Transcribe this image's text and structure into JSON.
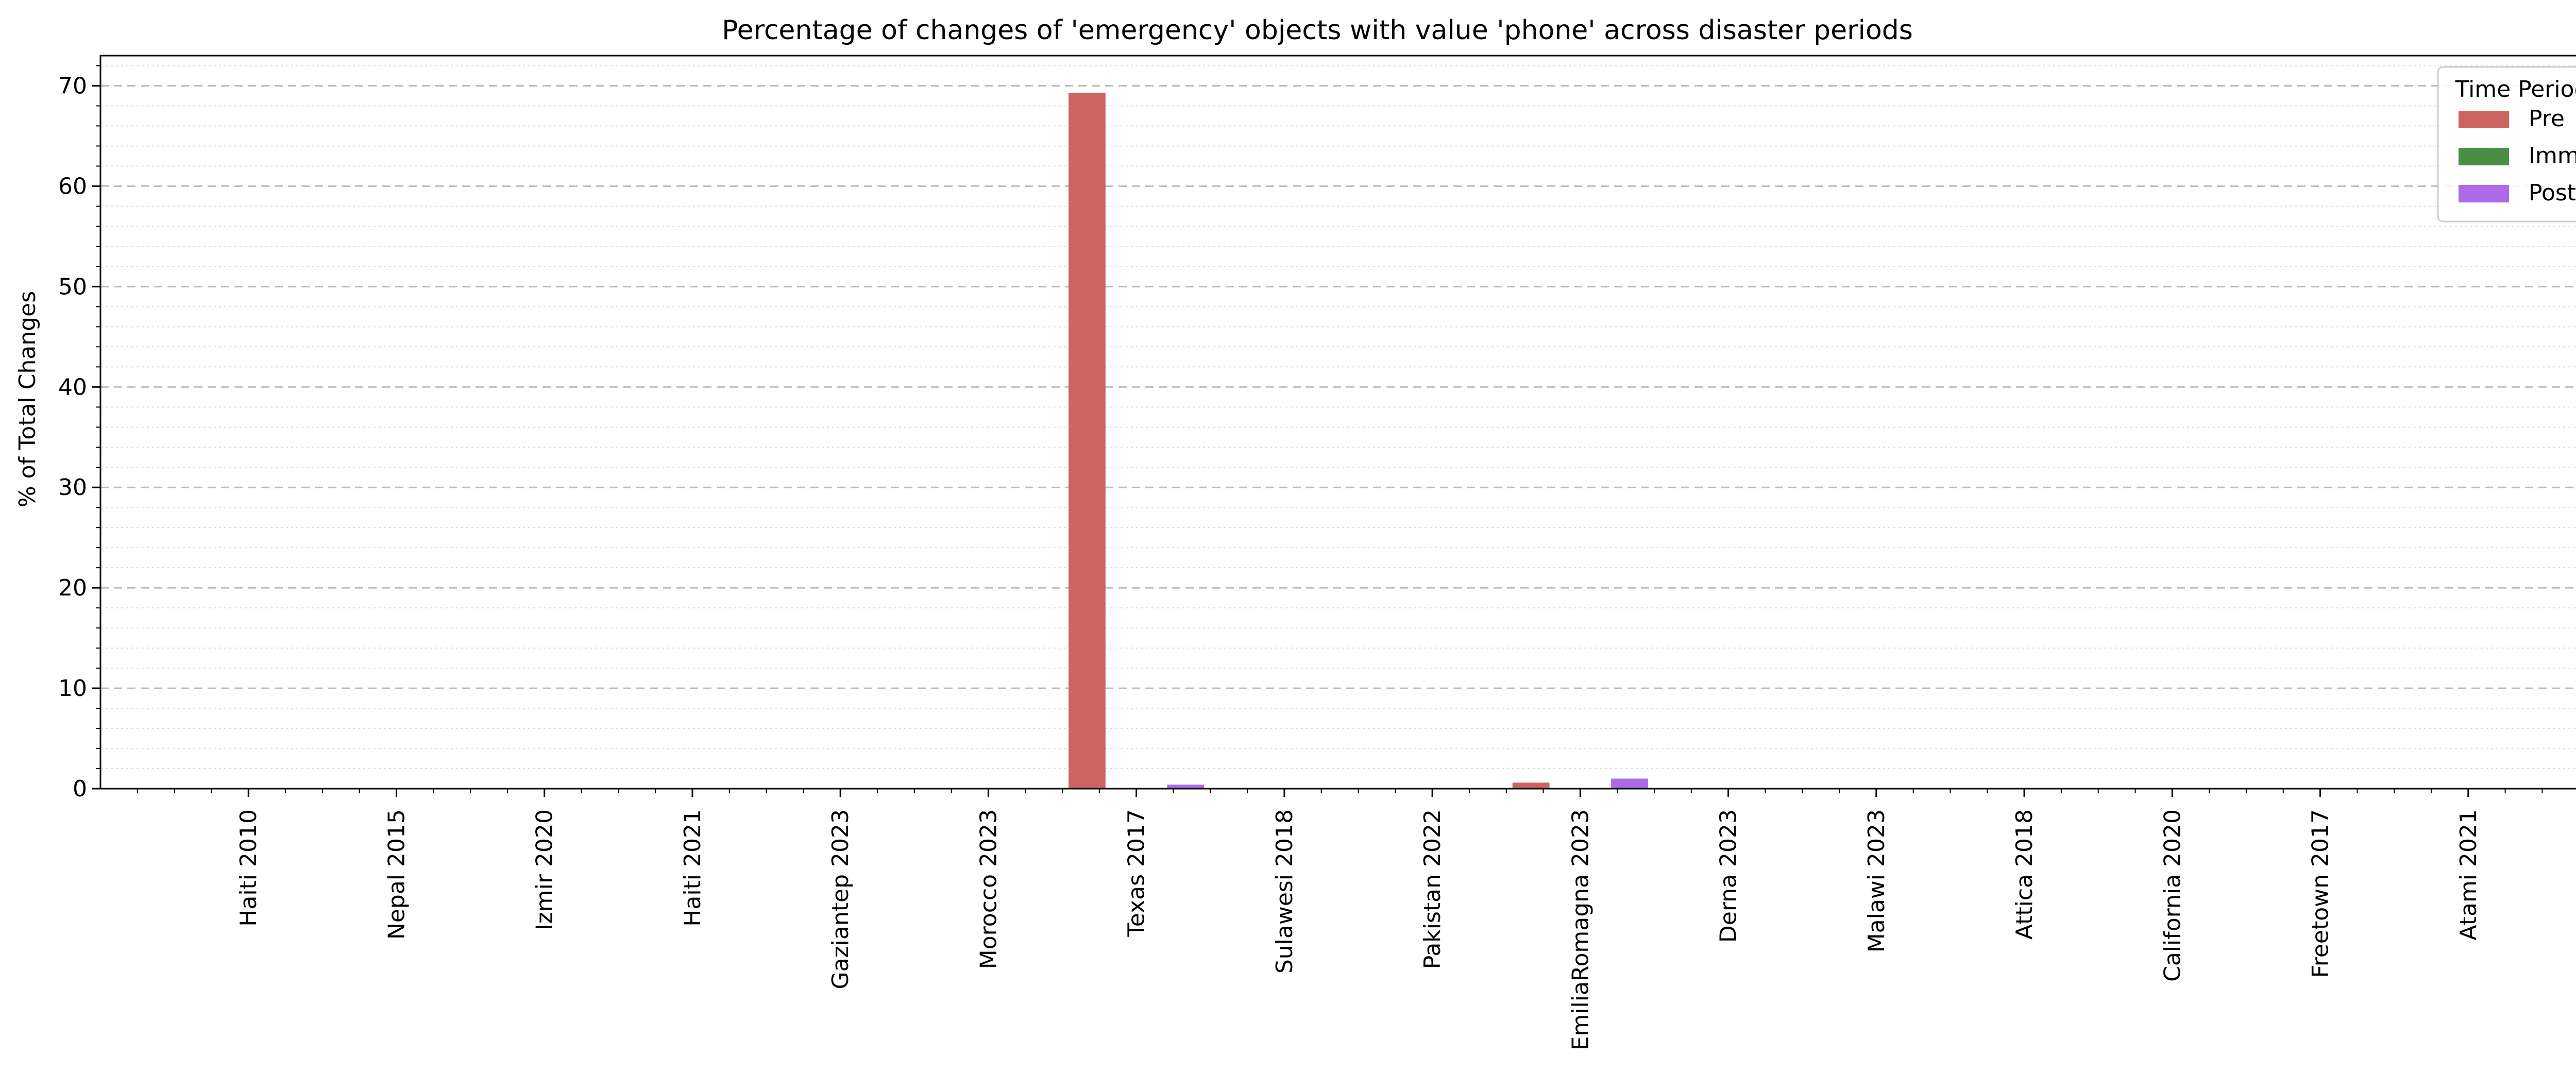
{
  "chart_data": {
    "type": "bar",
    "title": "Percentage of changes of 'emergency' objects with value 'phone' across disaster periods",
    "xlabel": "",
    "ylabel": "% of Total Changes",
    "ylim": [
      0,
      73
    ],
    "yticks": [
      0,
      10,
      20,
      30,
      40,
      50,
      60,
      70
    ],
    "grid": true,
    "legend_title": "Time Period",
    "legend_position": "top-right",
    "categories": [
      "Haiti 2010",
      "Nepal 2015",
      "Izmir 2020",
      "Haiti 2021",
      "Gaziantep 2023",
      "Morocco 2023",
      "Texas 2017",
      "Sulawesi 2018",
      "Pakistan 2022",
      "EmiliaRomagna 2023",
      "Derna 2023",
      "Malawi 2023",
      "Attica 2018",
      "California 2020",
      "Freetown 2017",
      "Atami 2021"
    ],
    "series": [
      {
        "name": "Pre",
        "color": "#cd6462",
        "values": [
          0,
          0,
          0,
          0,
          0,
          0,
          69.3,
          0,
          0,
          0.6,
          0,
          0,
          0,
          0,
          0,
          0
        ]
      },
      {
        "name": "Imm",
        "color": "#4b8f47",
        "values": [
          0,
          0,
          0,
          0,
          0,
          0,
          0,
          0,
          0,
          0,
          0,
          0,
          0,
          0,
          0,
          0
        ]
      },
      {
        "name": "Post",
        "color": "#ac6ae7",
        "values": [
          0,
          0,
          0,
          0,
          0,
          0,
          0.4,
          0,
          0,
          1.0,
          0,
          0,
          0,
          0,
          0,
          0
        ]
      }
    ]
  }
}
